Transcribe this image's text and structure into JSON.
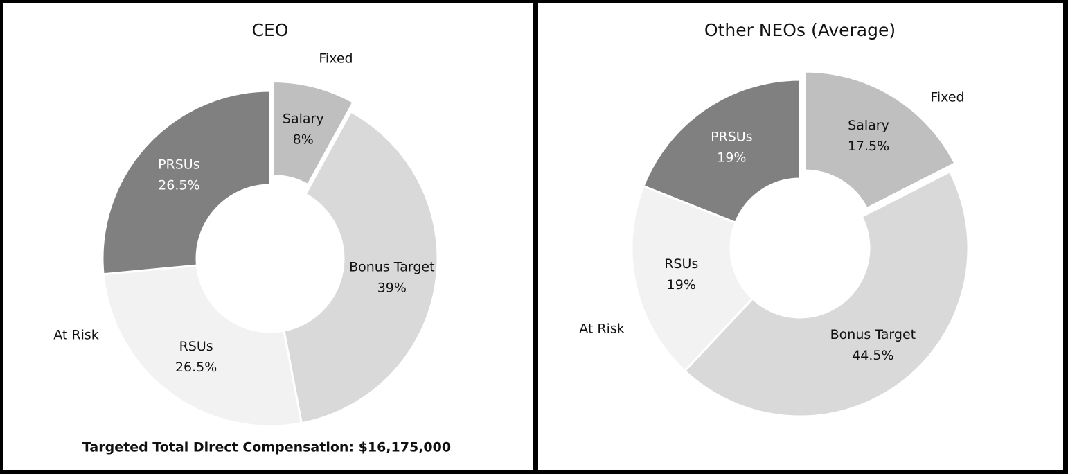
{
  "chart_data": [
    {
      "type": "pie",
      "title": "CEO",
      "categories": [
        "Salary",
        "Bonus Target",
        "RSUs",
        "PRSUs"
      ],
      "values": [
        8,
        39,
        26.5,
        26.5
      ],
      "value_labels": [
        "8%",
        "39%",
        "26.5%",
        "26.5%"
      ],
      "colors": [
        "#bfbfbf",
        "#d9d9d9",
        "#f2f2f2",
        "#808080"
      ],
      "explode": [
        true,
        false,
        false,
        false
      ],
      "annotations": [
        "Fixed",
        "At Risk"
      ],
      "footnote": "Targeted Total Direct Compensation: $16,175,000"
    },
    {
      "type": "pie",
      "title": "Other NEOs (Average)",
      "categories": [
        "Salary",
        "Bonus Target",
        "RSUs",
        "PRSUs"
      ],
      "values": [
        17.5,
        44.5,
        19,
        19
      ],
      "value_labels": [
        "17.5%",
        "44.5%",
        "19%",
        "19%"
      ],
      "colors": [
        "#bfbfbf",
        "#d9d9d9",
        "#f2f2f2",
        "#808080"
      ],
      "explode": [
        true,
        false,
        false,
        false
      ],
      "annotations": [
        "Fixed",
        "At Risk"
      ]
    }
  ]
}
